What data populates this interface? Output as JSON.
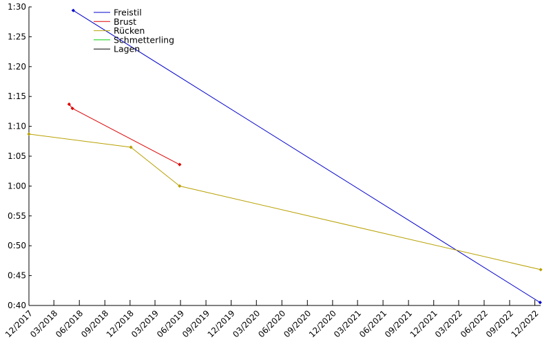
{
  "chart_data": {
    "type": "line",
    "title": "",
    "xlabel": "",
    "ylabel": "",
    "x_axis": {
      "type": "date",
      "range": [
        "2017-12-01",
        "2022-12-22"
      ],
      "ticks": [
        {
          "date": "2017-12-01",
          "label": "12/2017"
        },
        {
          "date": "2018-03-01",
          "label": "03/2018"
        },
        {
          "date": "2018-06-01",
          "label": "06/2018"
        },
        {
          "date": "2018-09-01",
          "label": "09/2018"
        },
        {
          "date": "2018-12-01",
          "label": "12/2018"
        },
        {
          "date": "2019-03-01",
          "label": "03/2019"
        },
        {
          "date": "2019-06-01",
          "label": "06/2019"
        },
        {
          "date": "2019-09-01",
          "label": "09/2019"
        },
        {
          "date": "2019-12-01",
          "label": "12/2019"
        },
        {
          "date": "2020-03-01",
          "label": "03/2020"
        },
        {
          "date": "2020-06-01",
          "label": "06/2020"
        },
        {
          "date": "2020-09-01",
          "label": "09/2020"
        },
        {
          "date": "2020-12-01",
          "label": "12/2020"
        },
        {
          "date": "2021-03-01",
          "label": "03/2021"
        },
        {
          "date": "2021-06-01",
          "label": "06/2021"
        },
        {
          "date": "2021-09-01",
          "label": "09/2021"
        },
        {
          "date": "2021-12-01",
          "label": "12/2021"
        },
        {
          "date": "2022-03-01",
          "label": "03/2022"
        },
        {
          "date": "2022-06-01",
          "label": "06/2022"
        },
        {
          "date": "2022-09-01",
          "label": "09/2022"
        },
        {
          "date": "2022-12-01",
          "label": "12/2022"
        }
      ]
    },
    "y_axis": {
      "unit": "seconds",
      "range": [
        40,
        90
      ],
      "ticks": [
        {
          "value": 40,
          "label": "0:40"
        },
        {
          "value": 45,
          "label": "0:45"
        },
        {
          "value": 50,
          "label": "0:50"
        },
        {
          "value": 55,
          "label": "0:55"
        },
        {
          "value": 60,
          "label": "1:00"
        },
        {
          "value": 65,
          "label": "1:05"
        },
        {
          "value": 70,
          "label": "1:10"
        },
        {
          "value": 75,
          "label": "1:15"
        },
        {
          "value": 80,
          "label": "1:20"
        },
        {
          "value": 85,
          "label": "1:25"
        },
        {
          "value": 90,
          "label": "1:30"
        }
      ]
    },
    "grid": false,
    "legend": {
      "placement": "top-left"
    },
    "series": [
      {
        "name": "Freistil",
        "color": "#0000cc",
        "points": [
          {
            "x": "2018-05-10",
            "y": 89.4
          },
          {
            "x": "2022-12-20",
            "y": 40.5
          }
        ]
      },
      {
        "name": "Brust",
        "color": "#dd0000",
        "points": [
          {
            "x": "2018-04-25",
            "y": 73.7
          },
          {
            "x": "2018-05-07",
            "y": 73.0
          },
          {
            "x": "2019-05-29",
            "y": 63.6
          }
        ]
      },
      {
        "name": "Rücken",
        "color": "#b8a000",
        "points": [
          {
            "x": "2017-12-01",
            "y": 68.7
          },
          {
            "x": "2018-12-04",
            "y": 66.5
          },
          {
            "x": "2019-05-29",
            "y": 60.0
          },
          {
            "x": "2022-12-22",
            "y": 46.0
          }
        ]
      },
      {
        "name": "Schmetterling",
        "color": "#00cc00",
        "points": []
      },
      {
        "name": "Lagen",
        "color": "#000000",
        "points": []
      }
    ]
  }
}
